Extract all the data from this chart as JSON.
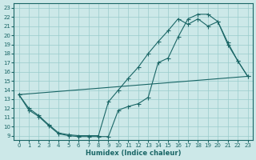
{
  "xlabel": "Humidex (Indice chaleur)",
  "bg_color": "#cce8e8",
  "grid_color": "#99cccc",
  "line_color": "#1a6666",
  "xlim": [
    -0.5,
    23.5
  ],
  "ylim": [
    8.5,
    23.5
  ],
  "yticks": [
    9,
    10,
    11,
    12,
    13,
    14,
    15,
    16,
    17,
    18,
    19,
    20,
    21,
    22,
    23
  ],
  "xticks": [
    0,
    1,
    2,
    3,
    4,
    5,
    6,
    7,
    8,
    9,
    10,
    11,
    12,
    13,
    14,
    15,
    16,
    17,
    18,
    19,
    20,
    21,
    22,
    23
  ],
  "curve1_x": [
    0,
    1,
    2,
    3,
    4,
    5,
    6,
    7,
    8,
    9,
    10,
    11,
    12,
    13,
    14,
    15,
    16,
    17,
    18,
    19,
    20,
    21,
    22,
    23
  ],
  "curve1_y": [
    13.5,
    11.8,
    11.1,
    10.1,
    9.2,
    9.0,
    8.9,
    8.9,
    8.9,
    8.9,
    11.8,
    12.2,
    12.5,
    13.2,
    17.0,
    17.5,
    19.8,
    21.8,
    22.3,
    22.3,
    21.5,
    19.0,
    17.2,
    15.5
  ],
  "curve2_x": [
    0,
    1,
    2,
    3,
    4,
    5,
    6,
    7,
    8,
    9,
    10,
    11,
    12,
    13,
    14,
    15,
    16,
    17,
    18,
    19,
    20,
    21,
    22,
    23
  ],
  "curve2_y": [
    13.5,
    12.0,
    11.2,
    10.2,
    9.3,
    9.1,
    9.0,
    9.0,
    9.0,
    12.7,
    14.0,
    15.3,
    16.5,
    18.0,
    19.3,
    20.5,
    21.8,
    21.2,
    21.8,
    21.0,
    21.5,
    19.2,
    17.2,
    15.5
  ],
  "curve3_x": [
    0,
    23
  ],
  "curve3_y": [
    13.5,
    15.5
  ]
}
